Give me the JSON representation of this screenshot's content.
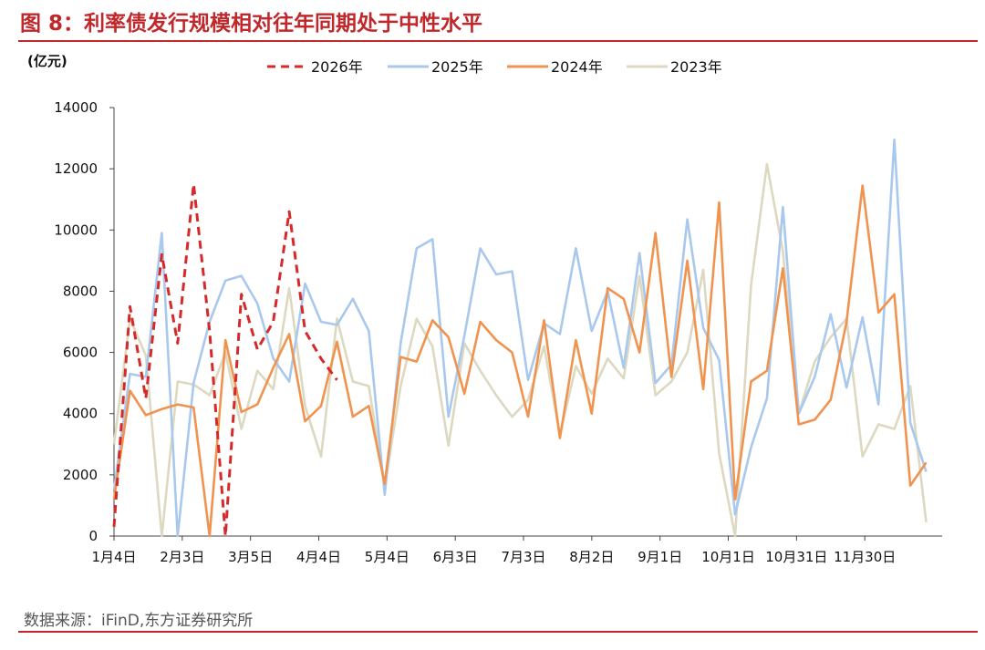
{
  "title": "图 8：利率债发行规模相对往年同期处于中性水平",
  "unit_label": "(亿元)",
  "source": "数据来源：iFinD,东方证券研究所",
  "chart_data": {
    "type": "line",
    "yticks": [
      "0",
      "2000",
      "4000",
      "6000",
      "8000",
      "10000",
      "12000",
      "14000"
    ],
    "xtick_labels": [
      "1月4日",
      "2月3日",
      "3月5日",
      "4月4日",
      "5月4日",
      "6月3日",
      "7月3日",
      "8月2日",
      "9月1日",
      "10月1日",
      "10月31日",
      "11月30日"
    ],
    "xtick_days": [
      0,
      30,
      60,
      90,
      120,
      150,
      180,
      210,
      240,
      270,
      300,
      330
    ],
    "ylim": [
      0,
      14000
    ],
    "xlim": [
      0,
      364
    ],
    "grid": false,
    "legend_position": "top",
    "series": [
      {
        "name": "2026年",
        "color": "#d42a2a",
        "dash": true,
        "days": [
          0,
          7,
          14,
          21,
          28,
          35,
          42,
          49,
          56,
          63,
          70,
          77,
          84,
          91,
          98
        ],
        "values": [
          300,
          7500,
          4500,
          9200,
          6300,
          11500,
          6700,
          0,
          7900,
          6100,
          7000,
          10600,
          6700,
          5800,
          5100
        ]
      },
      {
        "name": "2025年",
        "color": "#a9c8ee",
        "dash": false,
        "days": [
          0,
          7,
          14,
          21,
          28,
          35,
          42,
          49,
          56,
          63,
          70,
          77,
          84,
          91,
          98,
          105,
          112,
          119,
          126,
          133,
          140,
          147,
          154,
          161,
          168,
          175,
          182,
          189,
          196,
          203,
          210,
          217,
          224,
          231,
          238,
          245,
          252,
          259,
          266,
          273,
          280,
          287,
          294,
          301,
          308,
          315,
          322,
          329,
          336,
          343,
          350,
          357
        ],
        "values": [
          1500,
          5300,
          5200,
          9900,
          0,
          5000,
          7000,
          8350,
          8500,
          7600,
          5800,
          5050,
          8250,
          7000,
          6900,
          7750,
          6700,
          1350,
          6300,
          9400,
          9700,
          3900,
          6550,
          9400,
          8550,
          8650,
          5100,
          6950,
          6600,
          9400,
          6700,
          8000,
          5500,
          9250,
          5000,
          5600,
          10350,
          6800,
          5750,
          700,
          2900,
          4500,
          10750,
          4000,
          5200,
          7250,
          4850,
          7150,
          4300,
          12950,
          3700,
          2100
        ]
      },
      {
        "name": "2024年",
        "color": "#f0934f",
        "dash": false,
        "days": [
          0,
          7,
          14,
          21,
          28,
          35,
          42,
          49,
          56,
          63,
          70,
          77,
          84,
          91,
          98,
          105,
          112,
          119,
          126,
          133,
          140,
          147,
          154,
          161,
          168,
          175,
          182,
          189,
          196,
          203,
          210,
          217,
          224,
          231,
          238,
          245,
          252,
          259,
          266,
          273,
          280,
          287,
          294,
          301,
          308,
          315,
          322,
          329,
          336,
          343,
          350,
          357
        ],
        "values": [
          1200,
          4750,
          3950,
          4150,
          4300,
          4200,
          0,
          6400,
          4050,
          4300,
          5500,
          6600,
          3750,
          4250,
          6350,
          3900,
          4250,
          1700,
          5850,
          5700,
          7050,
          6500,
          4650,
          7000,
          6400,
          6000,
          3900,
          7050,
          3200,
          6400,
          4000,
          8100,
          7750,
          6000,
          9900,
          5200,
          9000,
          4800,
          10900,
          1200,
          5050,
          5400,
          8750,
          3650,
          3800,
          4450,
          7000,
          11450,
          7300,
          7900,
          1650,
          2400
        ]
      },
      {
        "name": "2023年",
        "color": "#ddd8c0",
        "dash": false,
        "days": [
          0,
          7,
          14,
          21,
          28,
          35,
          42,
          49,
          56,
          63,
          70,
          77,
          84,
          91,
          98,
          105,
          112,
          119,
          126,
          133,
          140,
          147,
          154,
          161,
          168,
          175,
          182,
          189,
          196,
          203,
          210,
          217,
          224,
          231,
          238,
          245,
          252,
          259,
          266,
          273,
          280,
          287,
          294,
          301,
          308,
          315,
          322,
          329,
          336,
          343,
          350,
          357
        ],
        "values": [
          3000,
          7100,
          5900,
          0,
          5050,
          4950,
          4600,
          6000,
          3500,
          5400,
          4800,
          8100,
          4250,
          2600,
          7100,
          5050,
          4900,
          1600,
          4900,
          7100,
          6200,
          2950,
          6300,
          5400,
          4600,
          3900,
          4450,
          6200,
          3300,
          5550,
          4650,
          5800,
          5150,
          8500,
          4600,
          5050,
          6000,
          8700,
          2700,
          0,
          8200,
          12150,
          9300,
          4000,
          5700,
          6500,
          7100,
          2600,
          3650,
          3500,
          4900,
          450
        ]
      }
    ]
  }
}
